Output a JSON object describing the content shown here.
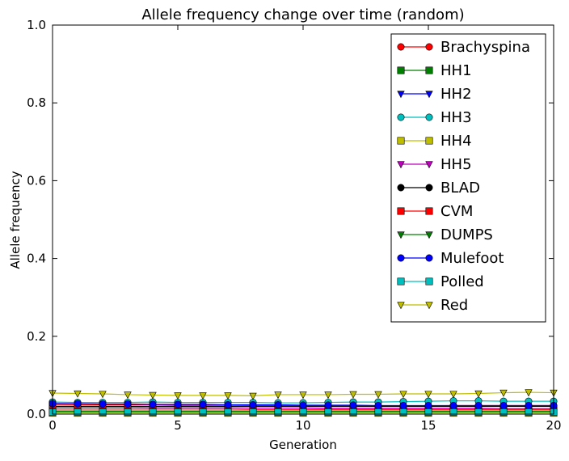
{
  "chart_data": {
    "type": "line",
    "title": "Allele frequency change over time (random)",
    "xlabel": "Generation",
    "ylabel": "Allele frequency",
    "xlim": [
      0,
      20
    ],
    "ylim": [
      0.0,
      1.0
    ],
    "xticks": [
      "0",
      "5",
      "10",
      "15",
      "20"
    ],
    "yticks": [
      "0.0",
      "0.2",
      "0.4",
      "0.6",
      "0.8",
      "1.0"
    ],
    "grid": false,
    "legend_position": "top-right",
    "x": [
      0,
      1,
      2,
      3,
      4,
      5,
      6,
      7,
      8,
      9,
      10,
      11,
      12,
      13,
      14,
      15,
      16,
      17,
      18,
      19,
      20
    ],
    "series": [
      {
        "name": "Brachyspina",
        "color": "#ff0000",
        "marker": "circle",
        "values": [
          0.025,
          0.024,
          0.024,
          0.024,
          0.024,
          0.023,
          0.023,
          0.023,
          0.022,
          0.022,
          0.022,
          0.021,
          0.021,
          0.021,
          0.021,
          0.021,
          0.022,
          0.022,
          0.022,
          0.022,
          0.022
        ]
      },
      {
        "name": "HH1",
        "color": "#008000",
        "marker": "square",
        "values": [
          0.006,
          0.006,
          0.006,
          0.006,
          0.006,
          0.006,
          0.006,
          0.006,
          0.006,
          0.006,
          0.006,
          0.006,
          0.006,
          0.006,
          0.006,
          0.006,
          0.006,
          0.006,
          0.006,
          0.006,
          0.006
        ]
      },
      {
        "name": "HH2",
        "color": "#0000ff",
        "marker": "triangle-down",
        "values": [
          0.004,
          0.004,
          0.004,
          0.004,
          0.004,
          0.004,
          0.004,
          0.004,
          0.004,
          0.004,
          0.004,
          0.004,
          0.004,
          0.004,
          0.004,
          0.004,
          0.004,
          0.004,
          0.004,
          0.004,
          0.004
        ]
      },
      {
        "name": "HH3",
        "color": "#00bfbf",
        "marker": "circle",
        "values": [
          0.031,
          0.03,
          0.03,
          0.03,
          0.031,
          0.03,
          0.03,
          0.03,
          0.03,
          0.029,
          0.029,
          0.03,
          0.031,
          0.031,
          0.032,
          0.033,
          0.034,
          0.034,
          0.033,
          0.033,
          0.033
        ]
      },
      {
        "name": "HH4",
        "color": "#bfbf00",
        "marker": "square",
        "values": [
          0.003,
          0.003,
          0.003,
          0.003,
          0.003,
          0.003,
          0.003,
          0.003,
          0.003,
          0.003,
          0.003,
          0.003,
          0.003,
          0.003,
          0.003,
          0.003,
          0.003,
          0.003,
          0.003,
          0.003,
          0.003
        ]
      },
      {
        "name": "HH5",
        "color": "#bf00bf",
        "marker": "triangle-down",
        "values": [
          0.018,
          0.018,
          0.018,
          0.018,
          0.017,
          0.017,
          0.017,
          0.017,
          0.016,
          0.016,
          0.016,
          0.015,
          0.015,
          0.015,
          0.015,
          0.015,
          0.015,
          0.015,
          0.014,
          0.014,
          0.014
        ]
      },
      {
        "name": "BLAD",
        "color": "#000000",
        "marker": "circle",
        "values": [
          0.02,
          0.02,
          0.02,
          0.02,
          0.02,
          0.02,
          0.02,
          0.02,
          0.02,
          0.02,
          0.02,
          0.02,
          0.02,
          0.02,
          0.02,
          0.02,
          0.02,
          0.02,
          0.02,
          0.02,
          0.02
        ]
      },
      {
        "name": "CVM",
        "color": "#ff0000",
        "marker": "square",
        "values": [
          0.013,
          0.013,
          0.013,
          0.013,
          0.013,
          0.013,
          0.013,
          0.013,
          0.012,
          0.012,
          0.012,
          0.012,
          0.012,
          0.012,
          0.012,
          0.012,
          0.012,
          0.012,
          0.012,
          0.012,
          0.012
        ]
      },
      {
        "name": "DUMPS",
        "color": "#008000",
        "marker": "triangle-down",
        "values": [
          0.008,
          0.008,
          0.008,
          0.008,
          0.008,
          0.008,
          0.008,
          0.008,
          0.008,
          0.008,
          0.008,
          0.008,
          0.008,
          0.008,
          0.008,
          0.008,
          0.008,
          0.008,
          0.008,
          0.008,
          0.008
        ]
      },
      {
        "name": "Mulefoot",
        "color": "#0000ff",
        "marker": "circle",
        "values": [
          0.027,
          0.027,
          0.026,
          0.026,
          0.025,
          0.025,
          0.025,
          0.024,
          0.024,
          0.024,
          0.023,
          0.023,
          0.023,
          0.022,
          0.022,
          0.022,
          0.022,
          0.022,
          0.022,
          0.022,
          0.022
        ]
      },
      {
        "name": "Polled",
        "color": "#00bfbf",
        "marker": "square",
        "values": [
          0.005,
          0.005,
          0.005,
          0.005,
          0.005,
          0.005,
          0.005,
          0.005,
          0.005,
          0.005,
          0.005,
          0.005,
          0.005,
          0.005,
          0.005,
          0.005,
          0.005,
          0.005,
          0.005,
          0.005,
          0.005
        ]
      },
      {
        "name": "Red",
        "color": "#bfbf00",
        "marker": "triangle-down",
        "values": [
          0.054,
          0.053,
          0.052,
          0.05,
          0.049,
          0.048,
          0.048,
          0.048,
          0.047,
          0.05,
          0.05,
          0.05,
          0.051,
          0.051,
          0.052,
          0.052,
          0.052,
          0.053,
          0.055,
          0.056,
          0.055
        ]
      }
    ]
  }
}
